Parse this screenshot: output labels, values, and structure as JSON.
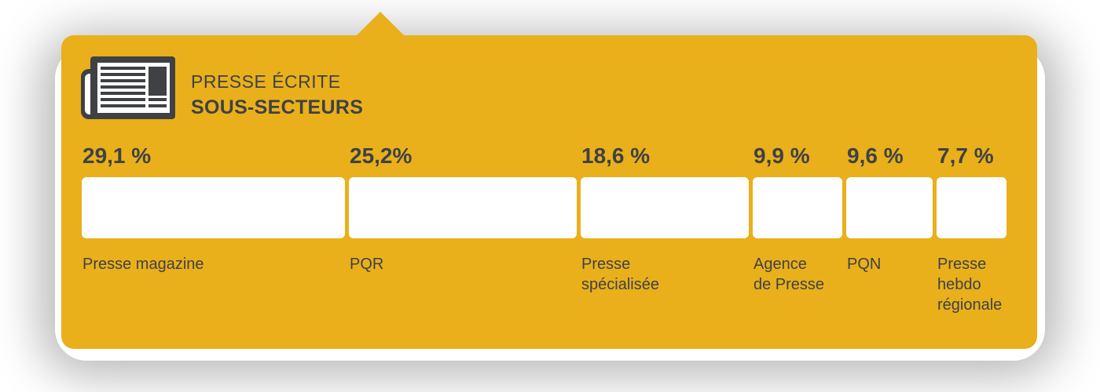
{
  "header": {
    "title": "PRESSE ÉCRITE",
    "subtitle": "SOUS-SECTEURS",
    "icon": "newspaper-icon"
  },
  "colors": {
    "panel": "#e9b01b",
    "bar": "#ffffff",
    "text": "#3f4144"
  },
  "chart_data": {
    "type": "bar",
    "orientation": "horizontal-stacked",
    "title": "PRESSE ÉCRITE",
    "subtitle": "SOUS-SECTEURS",
    "categories": [
      "Presse magazine",
      "PQR",
      "Presse\nspécialisée",
      "Agence\nde Presse",
      "PQN",
      "Presse\nhebdo\nrégionale"
    ],
    "values": [
      29.1,
      25.2,
      18.6,
      9.9,
      9.6,
      7.7
    ],
    "value_labels": [
      "29,1 %",
      "25,2%",
      "18,6 %",
      "9,9 %",
      "9,6 %",
      "7,7 %"
    ],
    "unit": "%"
  }
}
